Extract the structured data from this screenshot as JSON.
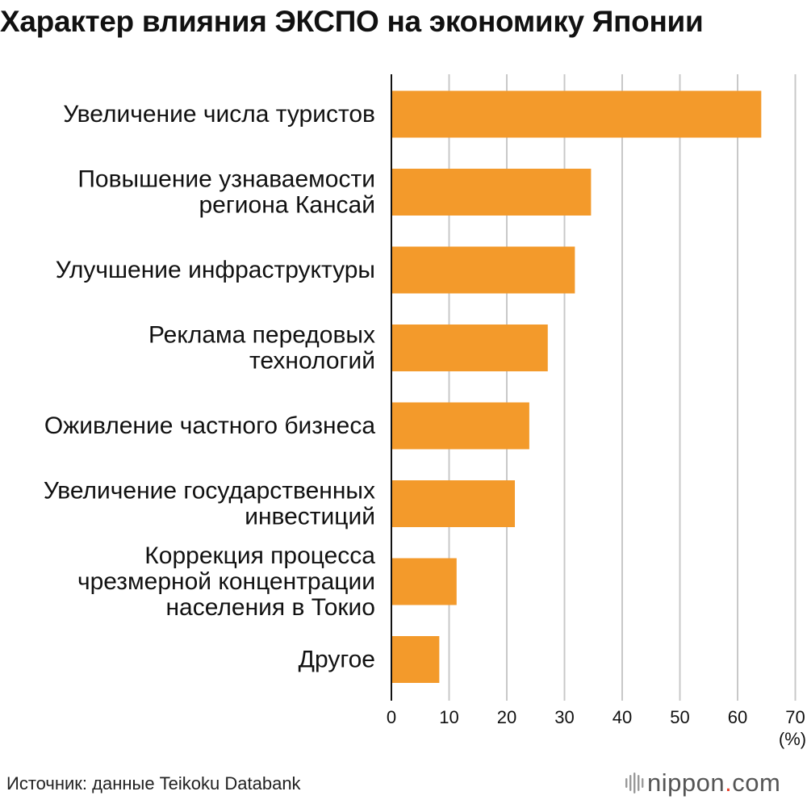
{
  "title": "Характер влияния ЭКСПО на экономику Японии",
  "chart_data": {
    "type": "bar",
    "orientation": "horizontal",
    "categories": [
      [
        "Увеличение числа туристов"
      ],
      [
        "Повышение узнаваемости",
        "региона Кансай"
      ],
      [
        "Улучшение инфраструктуры"
      ],
      [
        "Реклама передовых",
        "технологий"
      ],
      [
        "Оживление частного бизнеса"
      ],
      [
        "Увеличение государственных",
        "инвестиций"
      ],
      [
        "Коррекция процесса",
        "чрезмерной концентрации",
        "населения в Токио"
      ],
      [
        "Другое"
      ]
    ],
    "values": [
      64.1,
      34.6,
      31.8,
      27.1,
      23.9,
      21.4,
      11.3,
      8.3
    ],
    "xlim": [
      0,
      70
    ],
    "xticks": [
      "0",
      "10",
      "20",
      "30",
      "40",
      "50",
      "60",
      "70"
    ],
    "xunit": "(%)",
    "grid": true,
    "bar_color": "#f39a2b"
  },
  "source": "Источник: данные Teikoku Databank",
  "brand": {
    "name_a": "nippon",
    "dot": ".",
    "name_b": "com"
  }
}
